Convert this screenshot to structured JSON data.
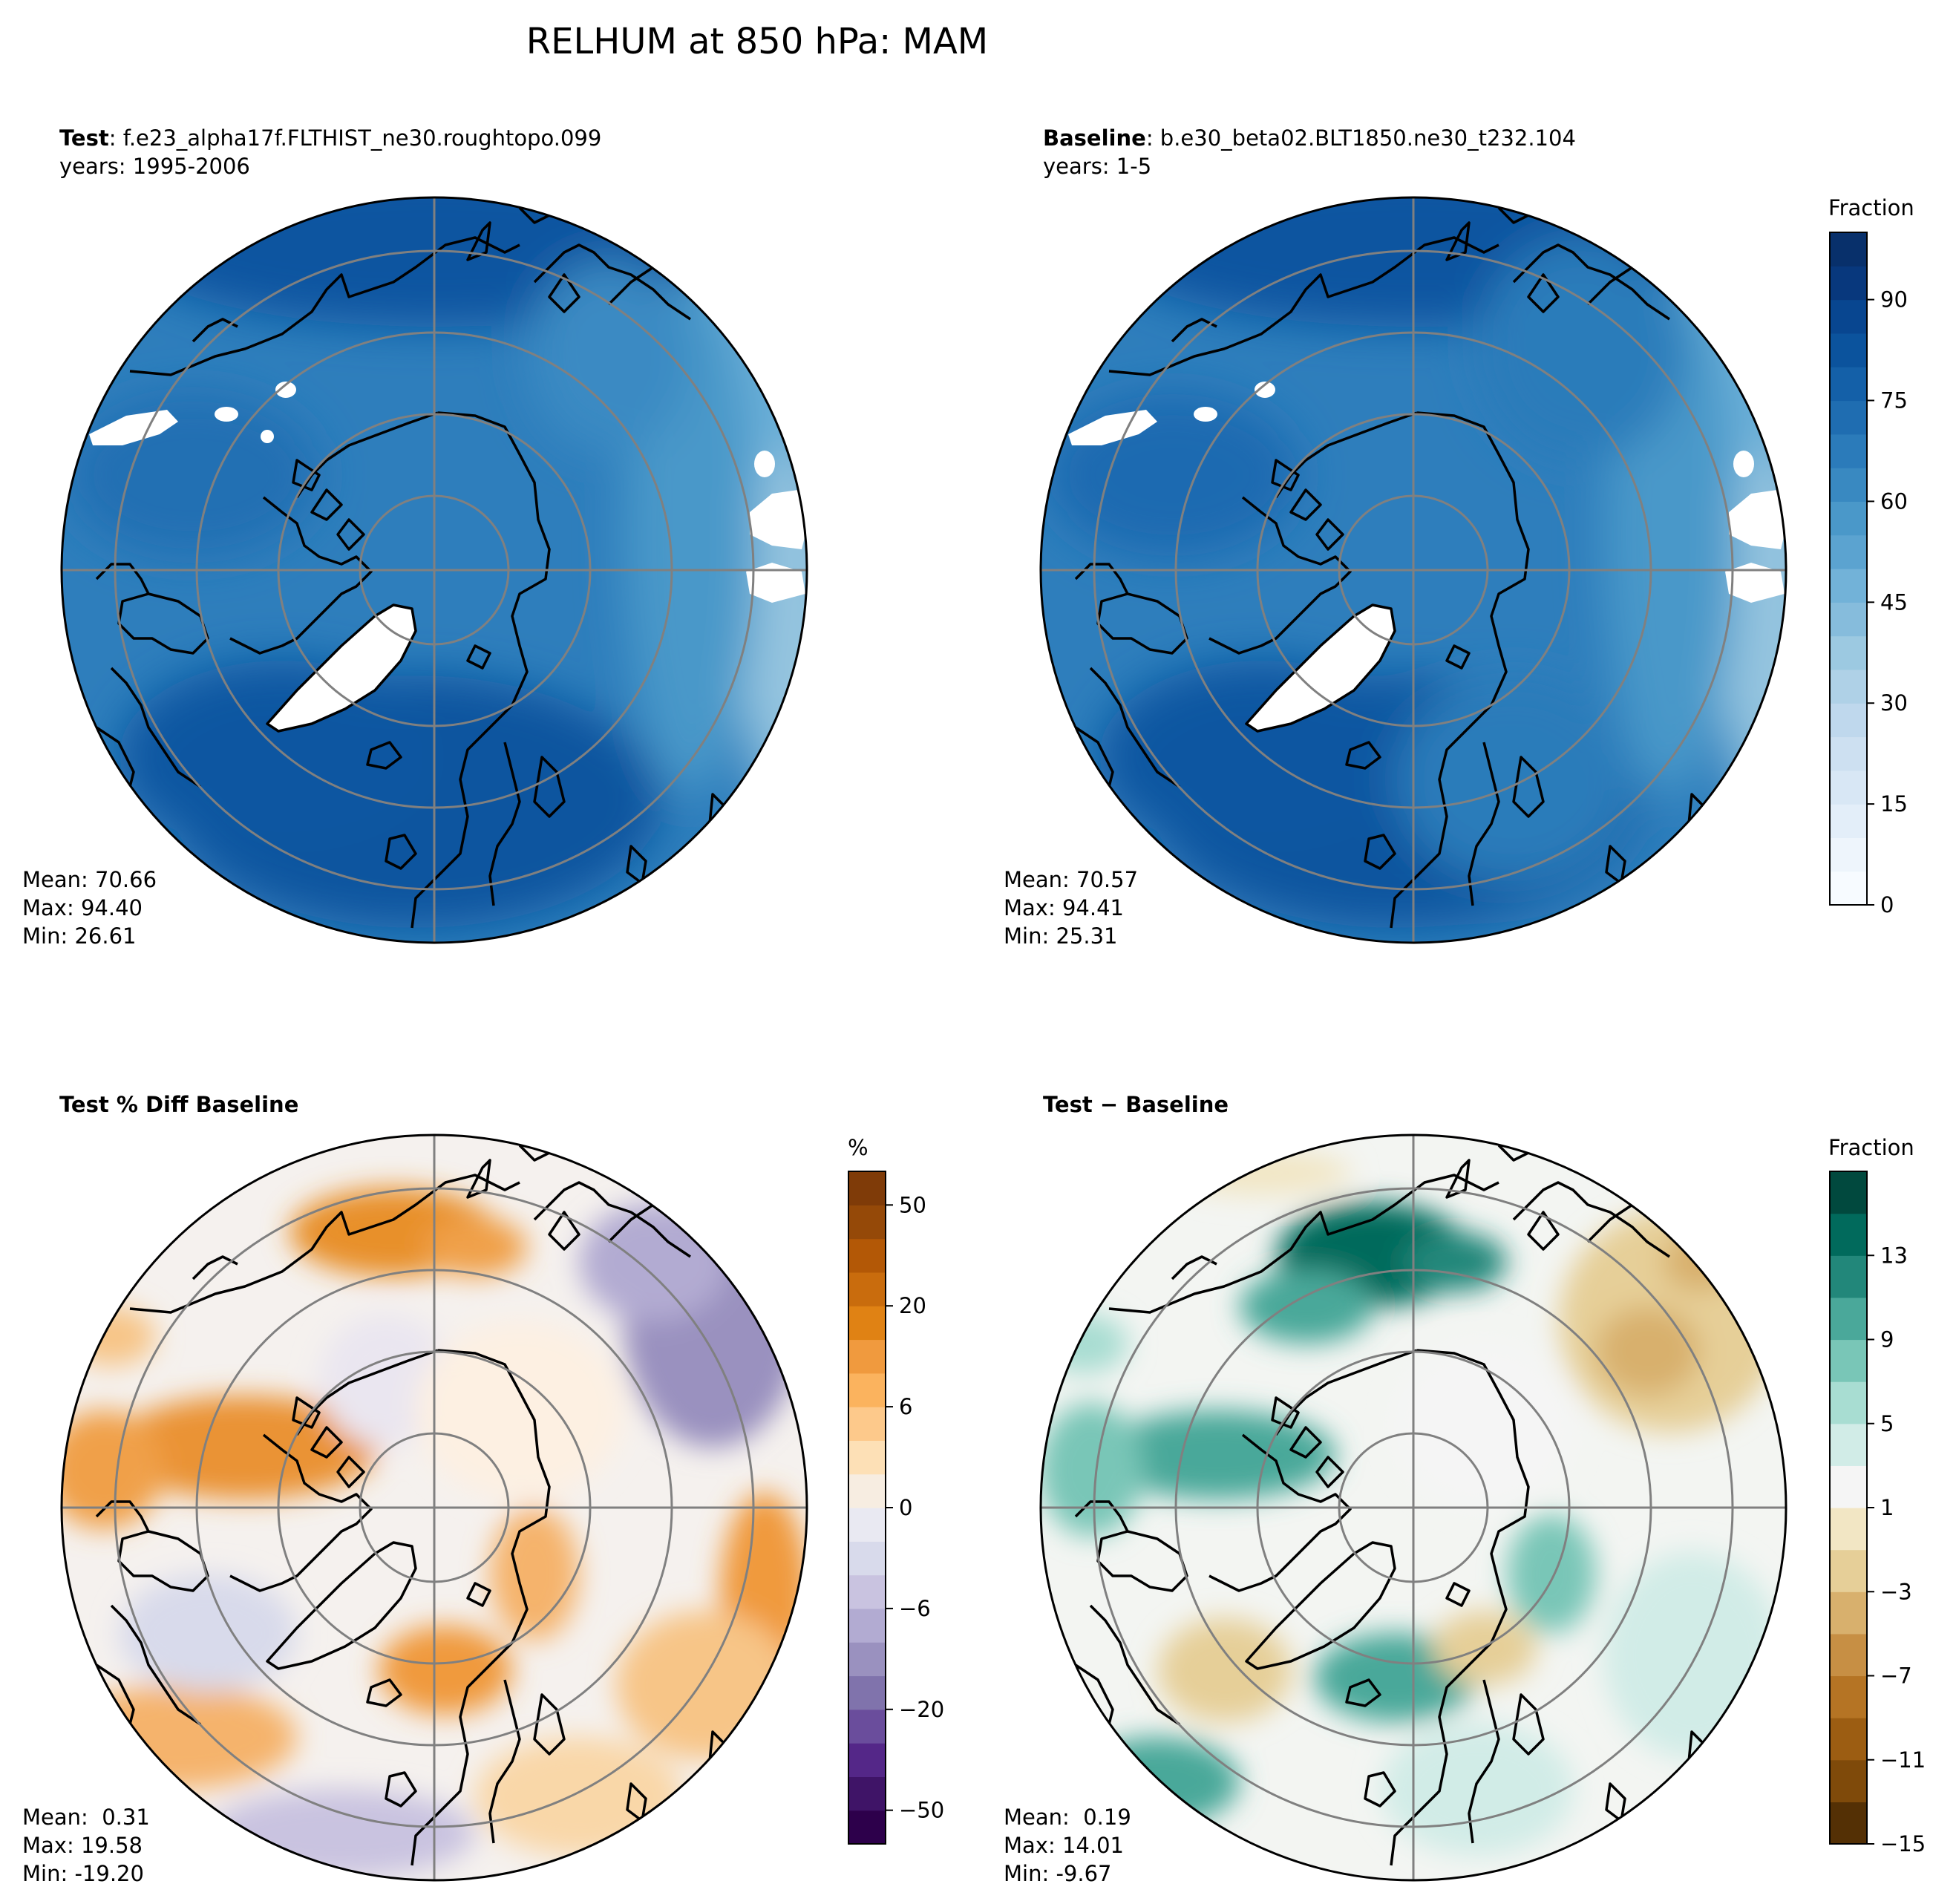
{
  "figure": {
    "title": "RELHUM at 850 hPa: MAM"
  },
  "panels": [
    {
      "id": "test",
      "label_bold": "Test",
      "label_rest": ": f.e23_alpha17f.FLTHIST_ne30.roughtopo.099",
      "years": "years: 1995-2006",
      "stats": {
        "mean": "Mean: 70.66",
        "max": "Max: 94.40",
        "min": "Min: 26.61"
      },
      "colormap": "Blues"
    },
    {
      "id": "baseline",
      "label_bold": "Baseline",
      "label_rest": ": b.e30_beta02.BLT1850.ne30_t232.104",
      "years": "years: 1-5",
      "stats": {
        "mean": "Mean: 70.57",
        "max": "Max: 94.41",
        "min": "Min: 25.31"
      },
      "colormap": "Blues"
    },
    {
      "id": "pct-diff",
      "label_bold": "Test % Diff Baseline",
      "label_rest": "",
      "years": "",
      "stats": {
        "mean": "Mean:  0.31",
        "max": "Max: 19.58",
        "min": "Min: -19.20"
      },
      "colormap": "PuOr"
    },
    {
      "id": "abs-diff",
      "label_bold": "Test − Baseline",
      "label_rest": "",
      "years": "",
      "stats": {
        "mean": "Mean:  0.19",
        "max": "Max: 14.01",
        "min": "Min: -9.67"
      },
      "colormap": "BrBG"
    }
  ],
  "colorbars": [
    {
      "id": "cb-top",
      "label": "Fraction",
      "min": 0,
      "max": 100,
      "ticks": [
        "0",
        "15",
        "30",
        "45",
        "60",
        "75",
        "90"
      ],
      "tick_values": [
        0,
        15,
        30,
        45,
        60,
        75,
        90
      ],
      "colors": [
        "#f7fbff",
        "#eef5fc",
        "#e3eef9",
        "#d8e7f5",
        "#cde0f1",
        "#bfd8ed",
        "#afd1e7",
        "#9cc9e1",
        "#86bcdc",
        "#72b2d8",
        "#5ba3d0",
        "#4a98c9",
        "#3989c1",
        "#2b7bba",
        "#1f6db1",
        "#1460a8",
        "#0b539d",
        "#084690",
        "#08387d",
        "#08306b"
      ]
    },
    {
      "id": "cb-pct",
      "label": "%",
      "ticks": [
        "50",
        "20",
        "6",
        "0",
        "−6",
        "−20",
        "−50"
      ],
      "levels": [
        -100,
        -50,
        -40,
        -30,
        -20,
        -10,
        -8,
        -6,
        -4,
        -2,
        0,
        2,
        4,
        6,
        8,
        10,
        20,
        30,
        40,
        50,
        100
      ],
      "tick_values": [
        50,
        20,
        6,
        0,
        -6,
        -20,
        -50
      ],
      "colors": [
        "#2d004b",
        "#3f1467",
        "#542788",
        "#6a4d9c",
        "#8073ac",
        "#9a91bf",
        "#b2abd2",
        "#c9c3e0",
        "#d8daeb",
        "#e9e9f2",
        "#f7ede1",
        "#fde0b6",
        "#fdc98b",
        "#fbb35e",
        "#f09a3e",
        "#e08214",
        "#c96c0d",
        "#b35806",
        "#954908",
        "#7f3b08"
      ]
    },
    {
      "id": "cb-diff",
      "label": "Fraction",
      "ticks": [
        "13",
        "9",
        "5",
        "1",
        "−3",
        "−7",
        "−11",
        "−15"
      ],
      "levels": [
        -15,
        -13,
        -11,
        -9,
        -7,
        -5,
        -3,
        -1,
        1,
        3,
        5,
        7,
        9,
        11,
        13,
        15
      ],
      "tick_values": [
        13,
        9,
        5,
        1,
        -3,
        -7,
        -11,
        -15
      ],
      "colors": [
        "#543005",
        "#7f4a0a",
        "#9c5d12",
        "#b57424",
        "#c78f44",
        "#d8b06d",
        "#e6cf98",
        "#f2e6c4",
        "#f5f5f5",
        "#d1ece7",
        "#a8ddd2",
        "#79c6b7",
        "#4aa89a",
        "#22877a",
        "#016a5c",
        "#01493e"
      ]
    }
  ]
}
